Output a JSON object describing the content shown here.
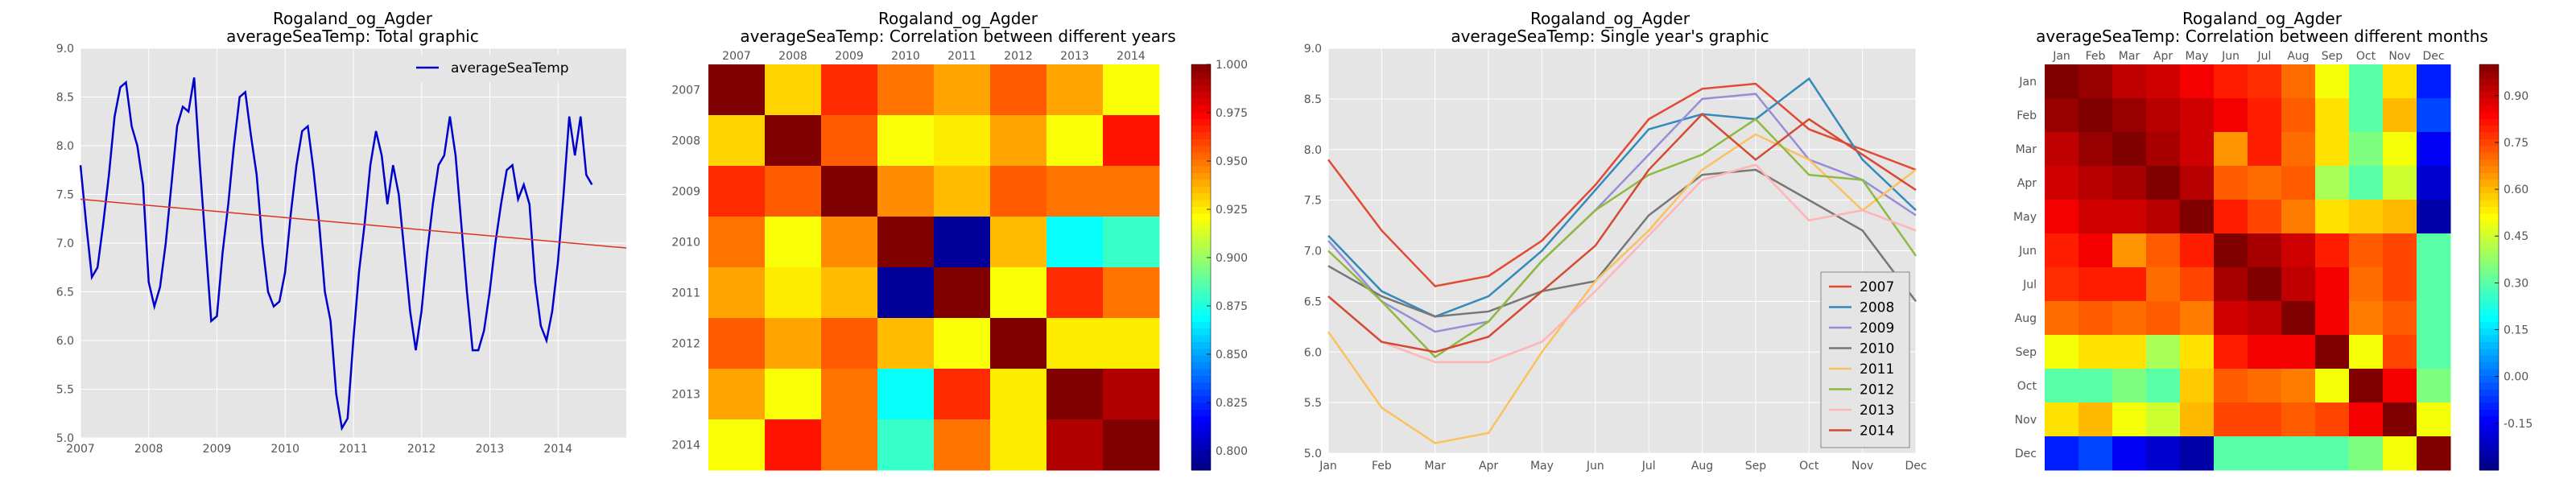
{
  "colors": {
    "panel_bg": "#e5e5e5",
    "grid": "#ffffff",
    "line_blue": "#0000cc",
    "trend_red": "#dd3322",
    "colormap": "jet"
  },
  "chart_data": [
    {
      "type": "line",
      "title": "Rogaland_og_Agder",
      "subtitle": "averageSeaTemp: Total graphic",
      "x_ticks": [
        "2007",
        "2008",
        "2009",
        "2010",
        "2011",
        "2012",
        "2013",
        "2014"
      ],
      "xlim": [
        2007,
        2015
      ],
      "ylim": [
        5.0,
        9.0
      ],
      "y_ticks": [
        "5.0",
        "5.5",
        "6.0",
        "6.5",
        "7.0",
        "7.5",
        "8.0",
        "8.5",
        "9.0"
      ],
      "grid": true,
      "legend_position": "top-right",
      "series": [
        {
          "name": "averageSeaTemp",
          "color": "#0000cc",
          "x_start": 2007,
          "x_step": 0.0833,
          "values": [
            7.8,
            7.2,
            6.65,
            6.75,
            7.2,
            7.7,
            8.3,
            8.6,
            8.65,
            8.2,
            8.0,
            7.6,
            6.6,
            6.35,
            6.55,
            7.0,
            7.6,
            8.2,
            8.4,
            8.35,
            8.7,
            7.8,
            7.0,
            6.2,
            6.25,
            6.9,
            7.4,
            8.0,
            8.5,
            8.55,
            8.1,
            7.7,
            7.0,
            6.5,
            6.35,
            6.4,
            6.7,
            7.3,
            7.8,
            8.15,
            8.2,
            7.75,
            7.2,
            6.5,
            6.2,
            5.45,
            5.1,
            5.2,
            6.0,
            6.7,
            7.2,
            7.8,
            8.15,
            7.9,
            7.4,
            7.8,
            7.5,
            6.9,
            6.3,
            5.9,
            6.3,
            6.9,
            7.4,
            7.8,
            7.9,
            8.3,
            7.9,
            7.2,
            6.5,
            5.9,
            5.9,
            6.1,
            6.5,
            7.0,
            7.4,
            7.75,
            7.8,
            7.45,
            7.6,
            7.4,
            6.6,
            6.15,
            6.0,
            6.3,
            6.8,
            7.5,
            8.3,
            7.9,
            8.3,
            7.7,
            7.6
          ]
        },
        {
          "name": "trend",
          "color": "#dd3322",
          "x": [
            2007,
            2015
          ],
          "values": [
            7.45,
            6.95
          ]
        }
      ]
    },
    {
      "type": "heatmap",
      "title": "Rogaland_og_Agder",
      "subtitle": "averageSeaTemp: Correlation between different years",
      "x_labels": [
        "2007",
        "2008",
        "2009",
        "2010",
        "2011",
        "2012",
        "2013",
        "2014"
      ],
      "y_labels": [
        "2007",
        "2008",
        "2009",
        "2010",
        "2011",
        "2012",
        "2013",
        "2014"
      ],
      "colorbar_range": [
        0.79,
        1.0
      ],
      "colorbar_ticks": [
        "0.800",
        "0.825",
        "0.850",
        "0.875",
        "0.900",
        "0.925",
        "0.950",
        "0.975",
        "1.000"
      ],
      "values": [
        [
          1.0,
          0.93,
          0.965,
          0.95,
          0.94,
          0.955,
          0.94,
          0.92
        ],
        [
          0.93,
          1.0,
          0.955,
          0.92,
          0.925,
          0.94,
          0.92,
          0.97
        ],
        [
          0.965,
          0.955,
          1.0,
          0.945,
          0.935,
          0.955,
          0.95,
          0.95
        ],
        [
          0.95,
          0.92,
          0.945,
          1.0,
          0.795,
          0.935,
          0.87,
          0.88
        ],
        [
          0.94,
          0.925,
          0.935,
          0.795,
          1.0,
          0.92,
          0.965,
          0.95
        ],
        [
          0.955,
          0.94,
          0.955,
          0.935,
          0.92,
          1.0,
          0.925,
          0.925
        ],
        [
          0.94,
          0.92,
          0.95,
          0.87,
          0.965,
          0.925,
          1.0,
          0.99
        ],
        [
          0.92,
          0.97,
          0.95,
          0.88,
          0.95,
          0.925,
          0.99,
          1.0
        ]
      ]
    },
    {
      "type": "line",
      "title": "Rogaland_og_Agder",
      "subtitle": "averageSeaTemp: Single year's graphic",
      "categories": [
        "Jan",
        "Feb",
        "Mar",
        "Apr",
        "May",
        "Jun",
        "Jul",
        "Aug",
        "Sep",
        "Oct",
        "Nov",
        "Dec"
      ],
      "ylim": [
        5.0,
        9.0
      ],
      "y_ticks": [
        "5.0",
        "5.5",
        "6.0",
        "6.5",
        "7.0",
        "7.5",
        "8.0",
        "8.5",
        "9.0"
      ],
      "grid": true,
      "legend_position": "bottom-right",
      "series": [
        {
          "name": "2007",
          "color": "#e24a33",
          "values": [
            7.9,
            7.2,
            6.65,
            6.75,
            7.1,
            7.65,
            8.3,
            8.6,
            8.65,
            8.2,
            8.0,
            7.8
          ]
        },
        {
          "name": "2008",
          "color": "#348abd",
          "values": [
            7.15,
            6.6,
            6.35,
            6.55,
            7.0,
            7.6,
            8.2,
            8.35,
            8.3,
            8.7,
            7.9,
            7.4
          ]
        },
        {
          "name": "2009",
          "color": "#988ed5",
          "values": [
            7.1,
            6.5,
            6.2,
            6.3,
            6.9,
            7.4,
            7.95,
            8.5,
            8.55,
            7.9,
            7.7,
            7.35
          ]
        },
        {
          "name": "2010",
          "color": "#777777",
          "values": [
            6.85,
            6.55,
            6.35,
            6.4,
            6.6,
            6.7,
            7.35,
            7.75,
            7.8,
            7.5,
            7.2,
            6.5
          ]
        },
        {
          "name": "2011",
          "color": "#fbc15e",
          "values": [
            6.2,
            5.45,
            5.1,
            5.2,
            6.0,
            6.7,
            7.2,
            7.8,
            8.15,
            7.9,
            7.4,
            7.8
          ]
        },
        {
          "name": "2012",
          "color": "#8eba42",
          "values": [
            7.0,
            6.5,
            5.95,
            6.3,
            6.9,
            7.4,
            7.75,
            7.95,
            8.3,
            7.75,
            7.7,
            6.95
          ]
        },
        {
          "name": "2013",
          "color": "#ffb5b8",
          "values": [
            6.55,
            6.1,
            5.9,
            5.9,
            6.1,
            6.6,
            7.15,
            7.7,
            7.85,
            7.3,
            7.4,
            7.2
          ]
        },
        {
          "name": "2014",
          "color": "#d44a33",
          "values": [
            6.55,
            6.1,
            6.0,
            6.15,
            6.6,
            7.05,
            7.8,
            8.35,
            7.9,
            8.3,
            7.95,
            7.6
          ]
        }
      ]
    },
    {
      "type": "heatmap",
      "title": "Rogaland_og_Agder",
      "subtitle": "averageSeaTemp: Correlation between different months",
      "x_labels": [
        "Jan",
        "Feb",
        "Mar",
        "Apr",
        "May",
        "Jun",
        "Jul",
        "Aug",
        "Sep",
        "Oct",
        "Nov",
        "Dec"
      ],
      "y_labels": [
        "Jan",
        "Feb",
        "Mar",
        "Apr",
        "May",
        "Jun",
        "Jul",
        "Aug",
        "Sep",
        "Oct",
        "Nov",
        "Dec"
      ],
      "colorbar_range": [
        -0.3,
        1.0
      ],
      "colorbar_ticks": [
        "0.90",
        "0.75",
        "0.60",
        "0.45",
        "0.30",
        "0.15",
        "0.00",
        "-0.15"
      ],
      "values": [
        [
          1.0,
          0.97,
          0.92,
          0.9,
          0.85,
          0.8,
          0.78,
          0.7,
          0.5,
          0.3,
          0.55,
          -0.1
        ],
        [
          0.97,
          1.0,
          0.97,
          0.93,
          0.9,
          0.85,
          0.8,
          0.72,
          0.55,
          0.3,
          0.6,
          -0.05
        ],
        [
          0.92,
          0.97,
          1.0,
          0.95,
          0.9,
          0.65,
          0.8,
          0.7,
          0.55,
          0.35,
          0.5,
          -0.15
        ],
        [
          0.9,
          0.93,
          0.95,
          1.0,
          0.93,
          0.72,
          0.7,
          0.72,
          0.4,
          0.3,
          0.45,
          -0.2
        ],
        [
          0.85,
          0.9,
          0.9,
          0.93,
          1.0,
          0.8,
          0.75,
          0.68,
          0.55,
          0.58,
          0.6,
          -0.25
        ],
        [
          0.8,
          0.85,
          0.65,
          0.72,
          0.8,
          1.0,
          0.95,
          0.9,
          0.8,
          0.72,
          0.75,
          0.3
        ],
        [
          0.78,
          0.8,
          0.8,
          0.7,
          0.75,
          0.95,
          1.0,
          0.92,
          0.85,
          0.7,
          0.75,
          0.3
        ],
        [
          0.7,
          0.72,
          0.7,
          0.72,
          0.68,
          0.9,
          0.92,
          1.0,
          0.85,
          0.68,
          0.72,
          0.3
        ],
        [
          0.5,
          0.55,
          0.55,
          0.4,
          0.55,
          0.8,
          0.85,
          0.85,
          1.0,
          0.5,
          0.75,
          0.3
        ],
        [
          0.3,
          0.3,
          0.35,
          0.3,
          0.58,
          0.72,
          0.7,
          0.68,
          0.5,
          1.0,
          0.85,
          0.35
        ],
        [
          0.55,
          0.6,
          0.5,
          0.45,
          0.6,
          0.75,
          0.75,
          0.72,
          0.75,
          0.85,
          1.0,
          0.5
        ],
        [
          -0.1,
          -0.05,
          -0.15,
          -0.2,
          -0.25,
          0.3,
          0.3,
          0.3,
          0.3,
          0.35,
          0.5,
          1.0
        ]
      ]
    }
  ]
}
